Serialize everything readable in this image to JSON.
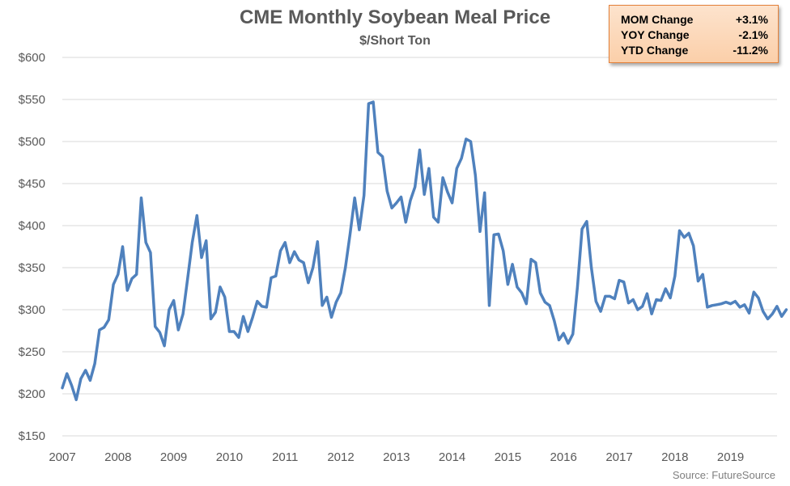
{
  "stats": {
    "rows": [
      {
        "label": "MOM Change",
        "value": "+3.1%"
      },
      {
        "label": "YOY Change",
        "value": "-2.1%"
      },
      {
        "label": "YTD Change",
        "value": "-11.2%"
      }
    ]
  },
  "source": "Source: FutureSource",
  "colors": {
    "line": "#4f81bd",
    "grid": "#d9d9d9",
    "box_border": "#e4813a",
    "box_fill": "#fbd7b7"
  },
  "chart_data": {
    "type": "line",
    "title": "CME Monthly Soybean Meal Price",
    "subtitle": "$/Short Ton",
    "xlabel": "",
    "ylabel": "",
    "ylim": [
      150,
      600
    ],
    "y_ticks": [
      150,
      200,
      250,
      300,
      350,
      400,
      450,
      500,
      550,
      600
    ],
    "y_tick_labels": [
      "$150",
      "$200",
      "$250",
      "$300",
      "$350",
      "$400",
      "$450",
      "$500",
      "$550",
      "$600"
    ],
    "x_tick_labels": [
      "2007",
      "2008",
      "2009",
      "2010",
      "2011",
      "2012",
      "2013",
      "2014",
      "2015",
      "2016",
      "2017",
      "2018",
      "2019"
    ],
    "x_start": "2007-01",
    "grid": true,
    "legend": "none",
    "series": [
      {
        "values": [
          207,
          224,
          210,
          193,
          218,
          228,
          216,
          236,
          276,
          279,
          288,
          330,
          342,
          375,
          323,
          337,
          342,
          433,
          380,
          368,
          280,
          273,
          257,
          300,
          311,
          276,
          295,
          337,
          380,
          412,
          362,
          382,
          289,
          297,
          327,
          315,
          274,
          274,
          267,
          292,
          274,
          291,
          310,
          304,
          303,
          338,
          340,
          370,
          380,
          356,
          369,
          359,
          356,
          332,
          350,
          381,
          305,
          315,
          291,
          309,
          320,
          350,
          390,
          433,
          395,
          436,
          545,
          547,
          487,
          482,
          441,
          421,
          427,
          434,
          404,
          430,
          446,
          490,
          437,
          468,
          410,
          404,
          457,
          440,
          427,
          468,
          480,
          503,
          500,
          460,
          393,
          439,
          305,
          389,
          390,
          370,
          330,
          354,
          327,
          320,
          307,
          360,
          356,
          320,
          309,
          305,
          287,
          264,
          272,
          260,
          271,
          327,
          396,
          405,
          350,
          310,
          298,
          316,
          316,
          313,
          335,
          333,
          308,
          312,
          300,
          304,
          319,
          295,
          312,
          311,
          325,
          314,
          340,
          394,
          386,
          391,
          376,
          334,
          342,
          303,
          305,
          306,
          307,
          309,
          307,
          310,
          303,
          306,
          296,
          321,
          314,
          298,
          289,
          295,
          304,
          292,
          300
        ]
      }
    ]
  }
}
